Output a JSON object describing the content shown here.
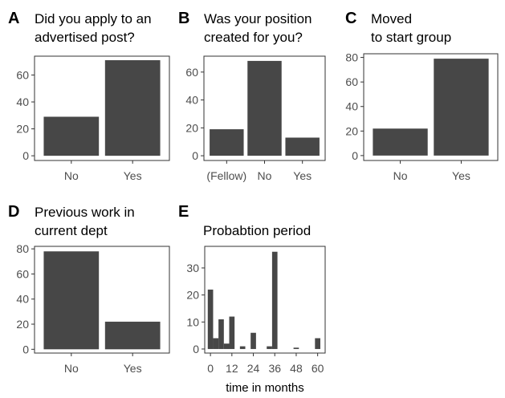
{
  "chart_data": [
    {
      "type": "bar",
      "panel": "A",
      "title": [
        "Did you apply to an",
        "advertised post?"
      ],
      "categories": [
        "No",
        "Yes"
      ],
      "values": [
        29,
        71
      ],
      "color": "#474747",
      "ylim": [
        -3.5,
        74
      ],
      "yticks": [
        0,
        20,
        40,
        60
      ]
    },
    {
      "type": "bar",
      "panel": "B",
      "title": [
        "Was your position",
        "created for you?"
      ],
      "categories": [
        "(Fellow)",
        "No",
        "Yes"
      ],
      "values": [
        19,
        68,
        13
      ],
      "color": "#474747",
      "ylim": [
        -3.4,
        71.4
      ],
      "yticks": [
        0,
        20,
        40,
        60
      ]
    },
    {
      "type": "bar",
      "panel": "C",
      "title": [
        "Moved",
        "to start group"
      ],
      "categories": [
        "No",
        "Yes"
      ],
      "values": [
        22,
        79
      ],
      "color": "#474747",
      "ylim": [
        -4,
        83
      ],
      "yticks": [
        0,
        20,
        40,
        60,
        80
      ]
    },
    {
      "type": "bar",
      "panel": "D",
      "title": [
        "Previous work in",
        "current dept"
      ],
      "categories": [
        "No",
        "Yes"
      ],
      "values": [
        78,
        22
      ],
      "color": "#474747",
      "ylim": [
        -3,
        82
      ],
      "yticks": [
        0,
        20,
        40,
        60,
        80
      ]
    },
    {
      "type": "histogram",
      "panel": "E",
      "title": [
        "Probabtion period"
      ],
      "x_label": "time in months",
      "bins": [
        -1.5,
        1.5,
        4.5,
        7.5,
        10.5,
        13.5,
        16.5,
        19.5,
        22.5,
        25.5,
        28.5,
        31.5,
        34.5,
        37.5,
        40.5,
        43.5,
        46.5,
        49.5,
        52.5,
        55.5,
        58.5,
        61.5
      ],
      "values": [
        22,
        4,
        11,
        2,
        12,
        0,
        1,
        0,
        6,
        0,
        0,
        1,
        36,
        0,
        0,
        0,
        0.5,
        0,
        0,
        0,
        4
      ],
      "color": "#474747",
      "xlim": [
        -3.2,
        64.2
      ],
      "xticks": [
        0,
        12,
        24,
        36,
        48,
        60
      ],
      "ylim": [
        -1.5,
        38
      ],
      "yticks": [
        0,
        10,
        20,
        30
      ]
    }
  ]
}
